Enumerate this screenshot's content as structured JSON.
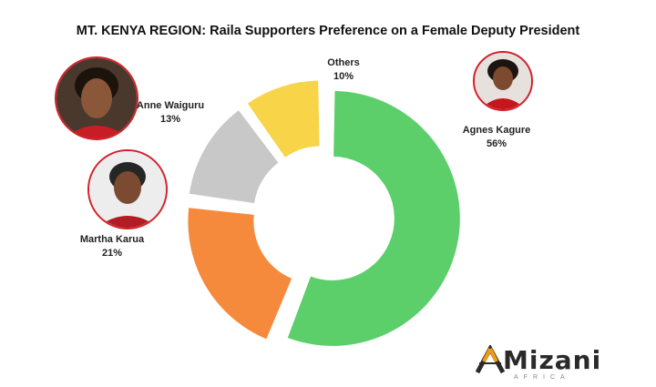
{
  "chart_data": {
    "type": "pie",
    "title": "MT. KENYA REGION: Raila Supporters Preference on a Female Deputy President",
    "slices": [
      {
        "name": "Agnes Kagure",
        "value": 56,
        "label": "56%",
        "color": "#5ccf6b"
      },
      {
        "name": "Martha Karua",
        "value": 21,
        "label": "21%",
        "color": "#f68a3c"
      },
      {
        "name": "Anne Waiguru",
        "value": 13,
        "label": "13%",
        "color": "#c8c8c8"
      },
      {
        "name": "Others",
        "value": 10,
        "label": "10%",
        "color": "#f7d448"
      }
    ]
  },
  "logo": {
    "name": "Mizani",
    "sub": "AFRICA"
  }
}
